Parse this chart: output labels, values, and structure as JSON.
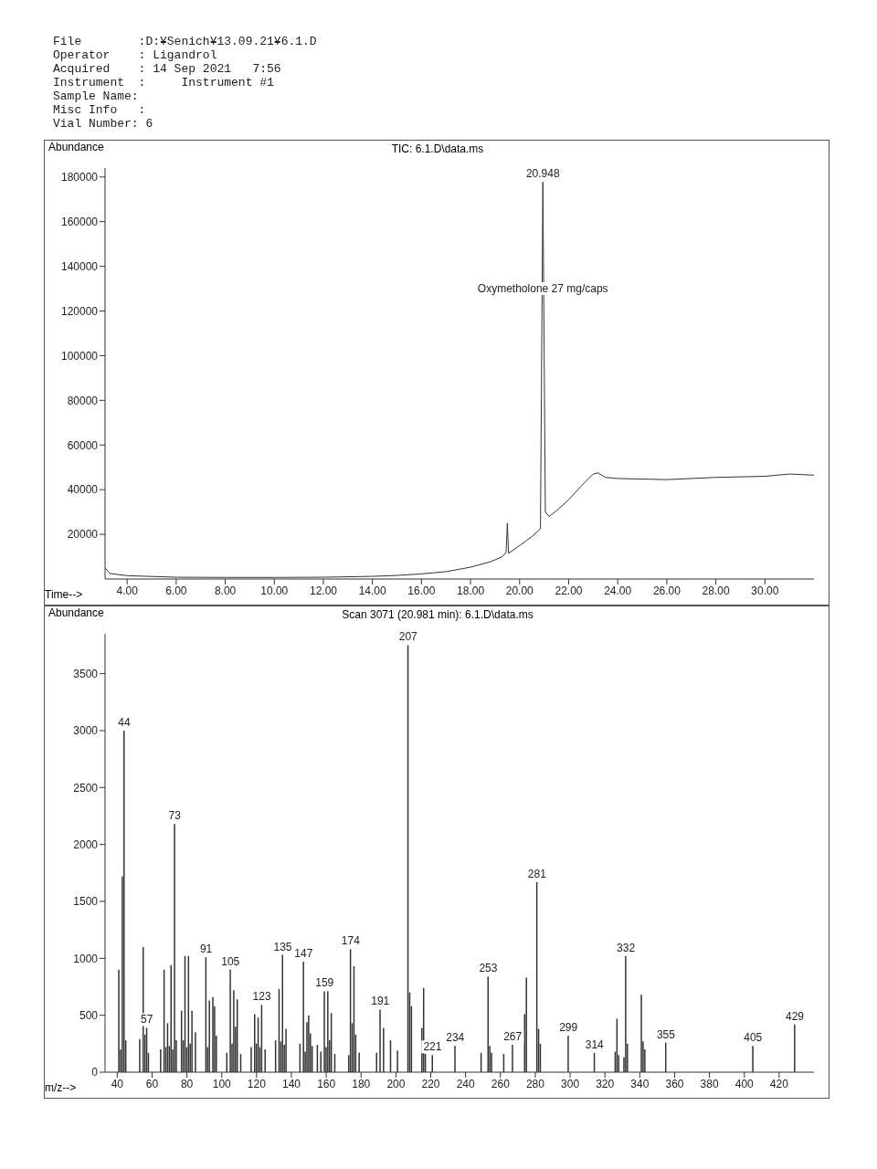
{
  "chart_data": [
    {
      "type": "other",
      "annotations": [
        "File        :D:¥Senich¥13.09.21¥6.1.D",
        "Operator    : Ligandrol",
        "Acquired    : 14 Sep 2021   7:56",
        "Instrument  :     Instrument #1",
        "Sample Name:",
        "Misc Info   :",
        "Vial Number: 6"
      ]
    },
    {
      "type": "line",
      "title": "TIC: 6.1.D\\data.ms",
      "xlabel": "Time-->",
      "ylabel": "Abundance",
      "color": "#333333",
      "grid": false,
      "x": [
        3.1,
        3.3,
        4,
        6,
        8,
        10,
        12,
        14,
        15,
        16,
        17,
        18,
        18.8,
        19.3,
        19.45,
        19.5,
        19.55,
        20,
        20.5,
        20.85,
        20.948,
        21.05,
        21.2,
        21.5,
        22,
        22.5,
        23,
        23.2,
        23.5,
        24,
        26,
        28,
        30,
        31,
        32
      ],
      "values": [
        5000,
        2500,
        1500,
        800,
        700,
        700,
        800,
        1200,
        1600,
        2300,
        3300,
        5300,
        7700,
        10000,
        12000,
        25000,
        11500,
        15000,
        19000,
        22500,
        177700,
        30000,
        28000,
        30500,
        35500,
        41500,
        47000,
        47500,
        45500,
        45000,
        44500,
        45500,
        46000,
        47000,
        46500
      ],
      "xlim": [
        3.1,
        32
      ],
      "ylim": [
        0,
        184000
      ],
      "xticks": [
        {
          "value": 4,
          "label": "4.00"
        },
        {
          "value": 6,
          "label": "6.00"
        },
        {
          "value": 8,
          "label": "8.00"
        },
        {
          "value": 10,
          "label": "10.00"
        },
        {
          "value": 12,
          "label": "12.00"
        },
        {
          "value": 14,
          "label": "14.00"
        },
        {
          "value": 16,
          "label": "16.00"
        },
        {
          "value": 18,
          "label": "18.00"
        },
        {
          "value": 20,
          "label": "20.00"
        },
        {
          "value": 22,
          "label": "22.00"
        },
        {
          "value": 24,
          "label": "24.00"
        },
        {
          "value": 26,
          "label": "26.00"
        },
        {
          "value": 28,
          "label": "28.00"
        },
        {
          "value": 30,
          "label": "30.00"
        }
      ],
      "yticks": [
        20000,
        40000,
        60000,
        80000,
        100000,
        120000,
        140000,
        160000,
        180000
      ],
      "annotations": [
        {
          "text": "20.948",
          "x": 20.948,
          "y": 177700
        },
        {
          "text": "Oxymetholone 27 mg/caps",
          "x": 20.948,
          "y": 130000
        }
      ]
    },
    {
      "type": "bar",
      "title": "Scan 3071 (20.981 min): 6.1.D\\data.ms",
      "xlabel": "m/z-->",
      "ylabel": "Abundance",
      "color": "#333333",
      "grid": false,
      "x": [
        41,
        42,
        43,
        44,
        45,
        53,
        55,
        56,
        57,
        58,
        65,
        67,
        68,
        69,
        70,
        71,
        72,
        73,
        74,
        77,
        78,
        79,
        80,
        81,
        82,
        83,
        85,
        91,
        92,
        93,
        95,
        96,
        97,
        103,
        105,
        106,
        107,
        108,
        109,
        111,
        117,
        119,
        120,
        121,
        122,
        123,
        125,
        131,
        133,
        134,
        135,
        136,
        137,
        145,
        147,
        148,
        149,
        150,
        151,
        152,
        155,
        157,
        159,
        160,
        161,
        162,
        163,
        165,
        173,
        174,
        175,
        176,
        177,
        179,
        189,
        191,
        193,
        197,
        201,
        207,
        208,
        209,
        215,
        216,
        217,
        221,
        234,
        249,
        253,
        254,
        255,
        262,
        267,
        274,
        275,
        281,
        282,
        283,
        299,
        314,
        326,
        327,
        328,
        331,
        332,
        333,
        341,
        342,
        343,
        355,
        405,
        429
      ],
      "values": [
        900,
        200,
        1720,
        3000,
        280,
        290,
        1100,
        330,
        390,
        170,
        200,
        900,
        220,
        430,
        230,
        940,
        200,
        2180,
        280,
        540,
        280,
        1020,
        220,
        1020,
        250,
        540,
        350,
        1010,
        220,
        630,
        660,
        580,
        320,
        170,
        900,
        250,
        720,
        400,
        640,
        160,
        220,
        510,
        250,
        480,
        220,
        590,
        200,
        280,
        730,
        270,
        1030,
        240,
        380,
        250,
        970,
        180,
        440,
        500,
        340,
        230,
        240,
        180,
        710,
        220,
        710,
        280,
        520,
        160,
        150,
        1080,
        430,
        930,
        330,
        170,
        170,
        550,
        390,
        280,
        190,
        3750,
        700,
        580,
        390,
        740,
        160,
        150,
        230,
        170,
        840,
        230,
        170,
        160,
        240,
        510,
        830,
        1670,
        380,
        250,
        320,
        170,
        180,
        470,
        150,
        130,
        1020,
        250,
        680,
        270,
        200,
        260,
        230,
        420
      ],
      "annotations": [
        {
          "text": "44",
          "x": 44,
          "y": 3000
        },
        {
          "text": "57",
          "x": 57,
          "y": 390
        },
        {
          "text": "73",
          "x": 73,
          "y": 2180
        },
        {
          "text": "91",
          "x": 91,
          "y": 1010
        },
        {
          "text": "105",
          "x": 105,
          "y": 900
        },
        {
          "text": "123",
          "x": 123,
          "y": 590
        },
        {
          "text": "135",
          "x": 135,
          "y": 1030
        },
        {
          "text": "147",
          "x": 147,
          "y": 970
        },
        {
          "text": "159",
          "x": 159,
          "y": 710
        },
        {
          "text": "174",
          "x": 174,
          "y": 1080
        },
        {
          "text": "191",
          "x": 191,
          "y": 550
        },
        {
          "text": "207",
          "x": 207,
          "y": 3750
        },
        {
          "text": "221",
          "x": 221,
          "y": 150
        },
        {
          "text": "234",
          "x": 234,
          "y": 230
        },
        {
          "text": "253",
          "x": 253,
          "y": 840
        },
        {
          "text": "267",
          "x": 267,
          "y": 240
        },
        {
          "text": "281",
          "x": 281,
          "y": 1670
        },
        {
          "text": "299",
          "x": 299,
          "y": 320
        },
        {
          "text": "314",
          "x": 314,
          "y": 170
        },
        {
          "text": "332",
          "x": 332,
          "y": 1020
        },
        {
          "text": "355",
          "x": 355,
          "y": 260
        },
        {
          "text": "405",
          "x": 405,
          "y": 230
        },
        {
          "text": "429",
          "x": 429,
          "y": 420
        }
      ],
      "xlim": [
        33,
        440
      ],
      "ylim": [
        0,
        3850
      ],
      "xticks": [
        40,
        60,
        80,
        100,
        120,
        140,
        160,
        180,
        200,
        220,
        240,
        260,
        280,
        300,
        320,
        340,
        360,
        380,
        400,
        420
      ],
      "yticks": [
        0,
        500,
        1000,
        1500,
        2000,
        2500,
        3000,
        3500
      ]
    }
  ]
}
